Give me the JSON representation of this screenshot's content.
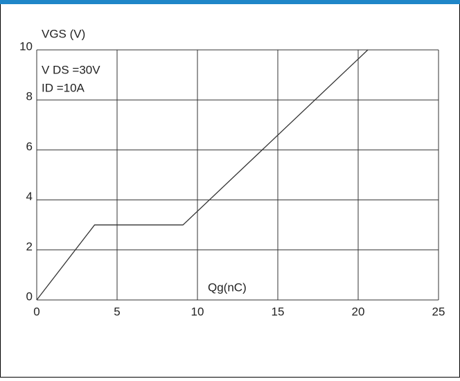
{
  "chart_data": {
    "type": "line",
    "ylabel": "VGS (V)",
    "xlabel": "Qg(nC)",
    "annotations": [
      "V DS =30V",
      "ID =10A"
    ],
    "x": [
      0,
      3.6,
      9.1,
      20.6
    ],
    "series": [
      {
        "name": "VGS",
        "color": "#333333",
        "values": [
          0,
          3,
          3,
          10
        ]
      }
    ],
    "xlim": [
      0,
      25
    ],
    "xticks": [
      0,
      5,
      10,
      15,
      20,
      25
    ],
    "ylim": [
      0,
      10
    ],
    "yticks": [
      0,
      2,
      4,
      6,
      8,
      10
    ],
    "grid": true
  }
}
